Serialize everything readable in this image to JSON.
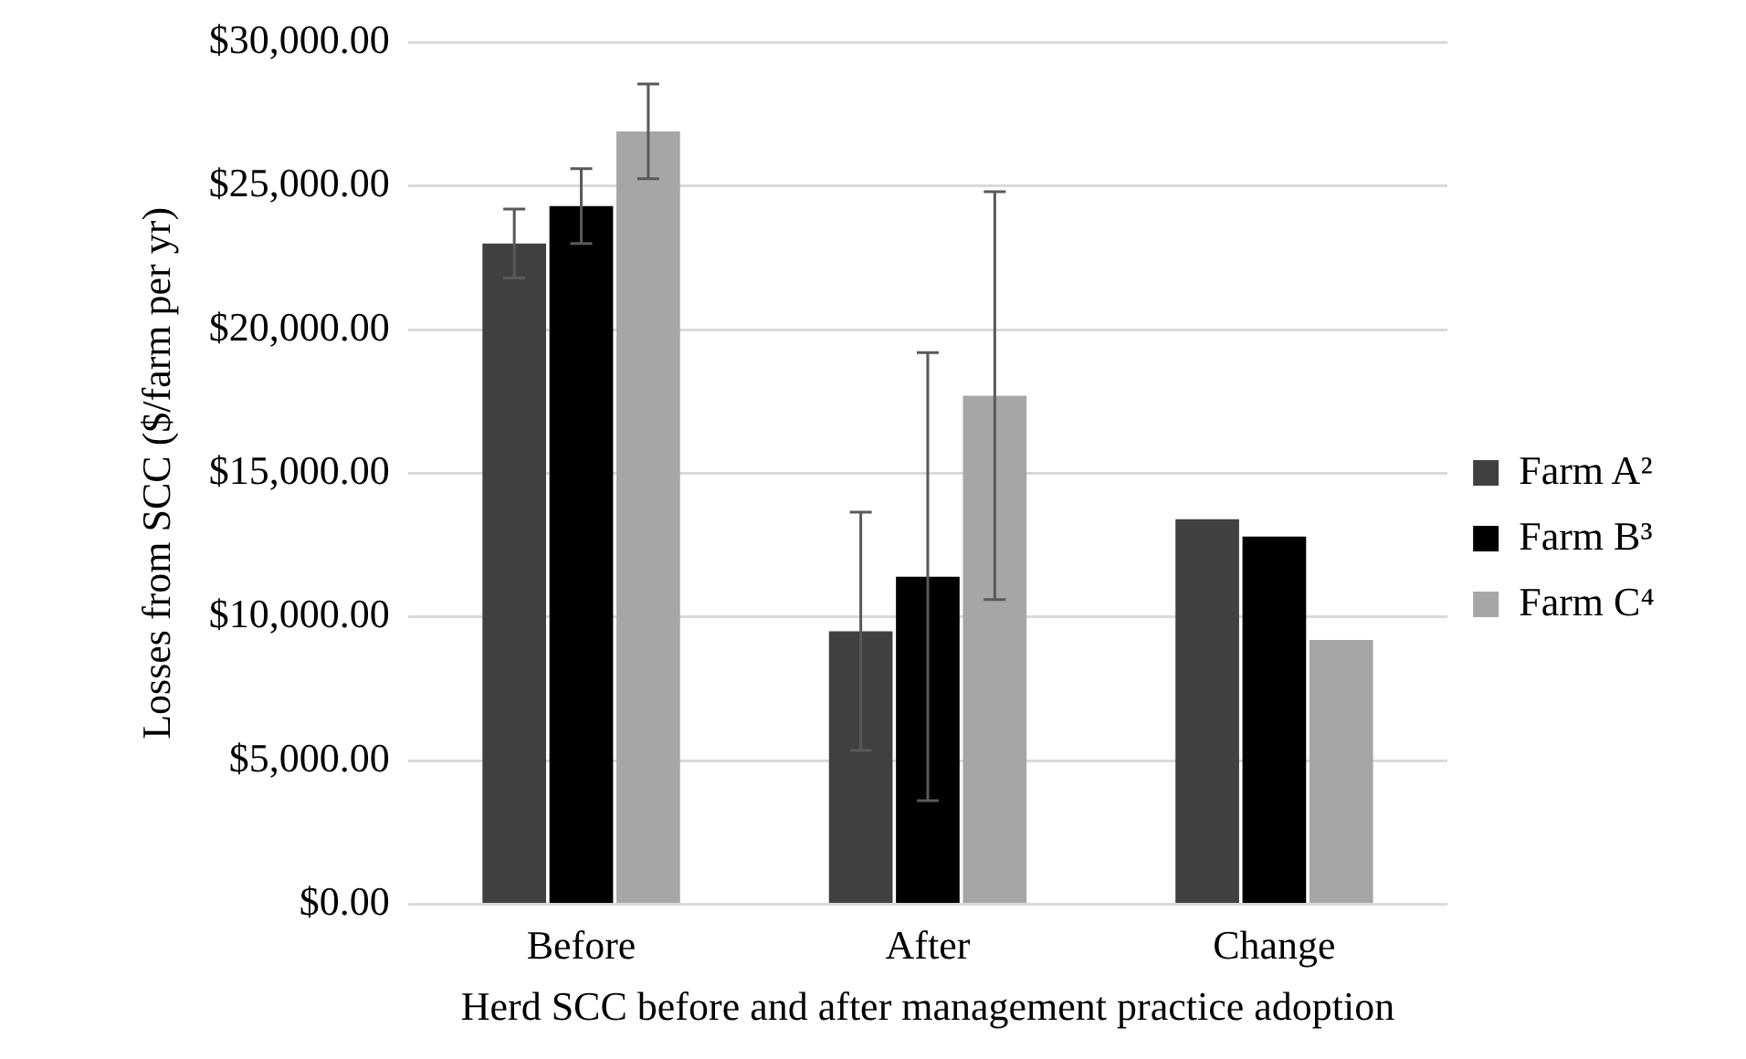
{
  "chart_data": {
    "type": "bar",
    "xlabel": "Herd SCC before and after management practice adoption",
    "ylabel": "Losses from SCC ($/farm per yr)",
    "categories": [
      "Before",
      "After",
      "Change"
    ],
    "series": [
      {
        "name": "Farm A²",
        "color": "#404040",
        "values": [
          23000,
          9500,
          13400
        ],
        "errors": [
          1200,
          4150,
          null
        ]
      },
      {
        "name": "Farm B³",
        "color": "#000000",
        "values": [
          24300,
          11400,
          12800
        ],
        "errors": [
          1300,
          7800,
          null
        ]
      },
      {
        "name": "Farm C⁴",
        "color": "#a6a6a6",
        "values": [
          26900,
          17700,
          9200
        ],
        "errors": [
          1650,
          7100,
          null
        ]
      }
    ],
    "ylim": [
      0,
      30000
    ],
    "yticks": [
      {
        "value": 0,
        "label": "$0.00"
      },
      {
        "value": 5000,
        "label": "$5,000.00"
      },
      {
        "value": 10000,
        "label": "$10,000.00"
      },
      {
        "value": 15000,
        "label": "$15,000.00"
      },
      {
        "value": 20000,
        "label": "$20,000.00"
      },
      {
        "value": 25000,
        "label": "$25,000.00"
      },
      {
        "value": 30000,
        "label": "$30,000.00"
      }
    ],
    "grid": "y",
    "legend": "right"
  }
}
